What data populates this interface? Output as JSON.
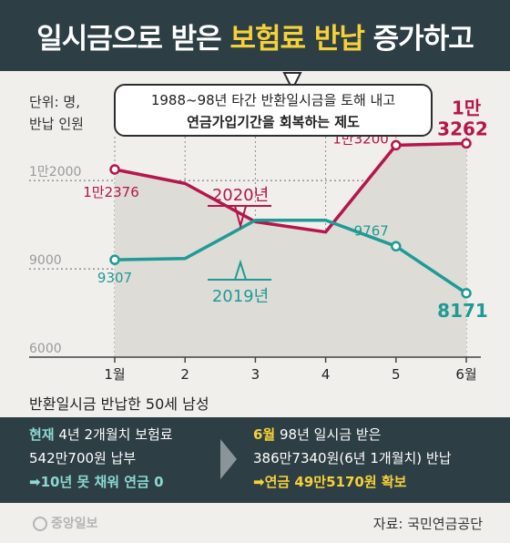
{
  "header": {
    "title_pre": "일시금으로 받은 ",
    "title_highlight": "보험료 반납",
    "title_post": " 증가하고"
  },
  "unit_label": {
    "line1": "단위: 명,",
    "line2": "반납 인원"
  },
  "callout": {
    "line1": "1988~98년 타간 반환일시금을 토해 내고",
    "line2": "연금가입기간을 회복하는 제도"
  },
  "colors": {
    "series_2020": "#b5164c",
    "series_2019": "#1f9a95",
    "header_bg": "#2d3e45",
    "highlight": "#f5d13a"
  },
  "chart_data": {
    "type": "line",
    "categories": [
      "1월",
      "2",
      "3",
      "4",
      "5",
      "6월"
    ],
    "y_ticks": [
      {
        "value": 12000,
        "label": "1만2000"
      },
      {
        "value": 9000,
        "label": "9000"
      },
      {
        "value": 6000,
        "label": "6000"
      }
    ],
    "ylim": [
      6000,
      13800
    ],
    "series": [
      {
        "name": "2020년",
        "color": "#b5164c",
        "values": [
          12376,
          11900,
          10600,
          10250,
          13200,
          13262
        ],
        "point_labels": [
          {
            "index": 0,
            "text": "1만2376"
          },
          {
            "index": 4,
            "text": "1만3200"
          },
          {
            "index": 5,
            "text": "1만 3262"
          }
        ]
      },
      {
        "name": "2019년",
        "color": "#1f9a95",
        "values": [
          9307,
          9350,
          10650,
          10650,
          9767,
          8171
        ],
        "point_labels": [
          {
            "index": 0,
            "text": "9307"
          },
          {
            "index": 4,
            "text": "9767"
          },
          {
            "index": 5,
            "text": "8171"
          }
        ]
      }
    ]
  },
  "subtitle": "반환일시금 반납한 50세 남성",
  "panel": {
    "left": {
      "label_highlight": "현재",
      "line1_rest": " 4년 2개월치 보험료",
      "line2": "542만700원 납부",
      "line3": "➡10년 못 채워 연금 0"
    },
    "right": {
      "label_highlight": "6월",
      "line1_rest": " 98년 일시금 받은",
      "line2": "386만7340원(6년 1개월치) 반납",
      "line3": "➡연금 49만5170원 확보"
    }
  },
  "footer": {
    "logo": "중앙일보",
    "source": "자료: 국민연금공단"
  }
}
